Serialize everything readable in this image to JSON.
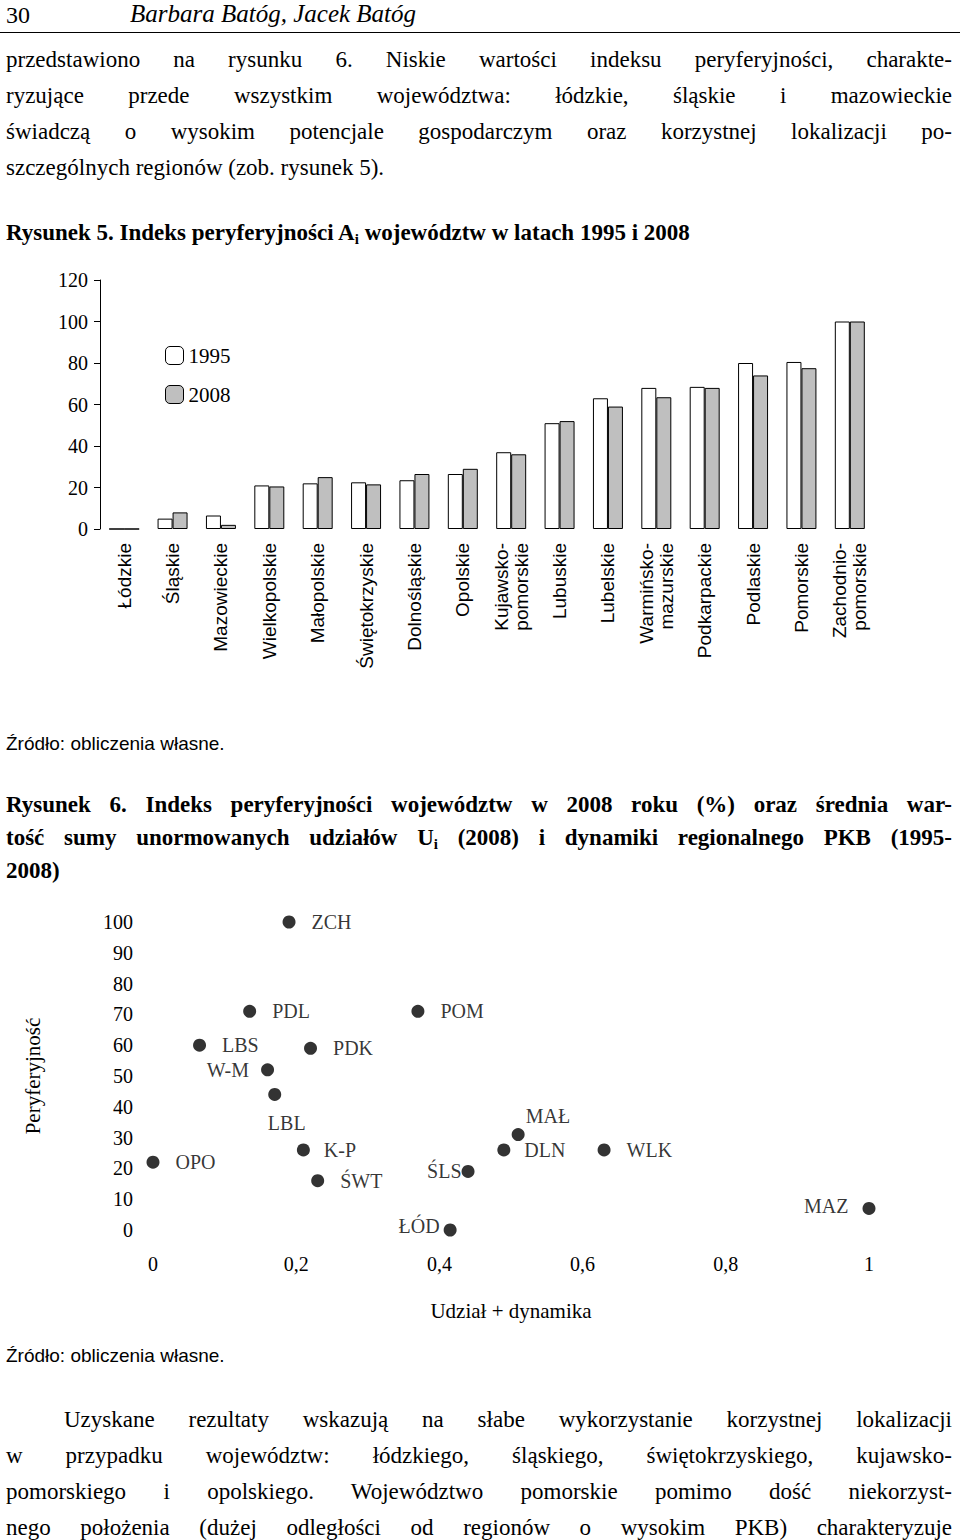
{
  "header": {
    "page": "30",
    "authors": "Barbara Batóg, Jacek Batóg"
  },
  "body_top": [
    [
      "przedstawiono na rysunku 6. Niskie wartości indeksu peryferyjności, charakte-"
    ],
    [
      "ryzujące przede wszystkim województwa: łódzkie, śląskie i mazowieckie"
    ],
    [
      "świadczą o wysokim potencjale gospodarczym oraz korzystnej lokalizacji po-"
    ],
    [
      "szczególnych regionów (zob. rysunek 5)."
    ]
  ],
  "figures": [
    {
      "caption": [
        [
          "Rysunek 5. Indeks peryferyjności A",
          {
            "sub": "i"
          },
          " województw w latach 1995 i 2008"
        ]
      ],
      "source": "Źródło: obliczenia własne."
    },
    {
      "caption": [
        [
          "Rysunek 6. Indeks peryferyjności województw w 2008 roku (%) oraz średnia war-"
        ],
        [
          "tość sumy unormowanych udziałów U",
          {
            "sub": "i"
          },
          " (2008) i dynamiki regionalnego PKB (1995-"
        ],
        [
          "2008)"
        ]
      ],
      "source": "Źródło: obliczenia własne."
    }
  ],
  "body_bottom": [
    [
      "Uzyskane rezultaty wskazują na słabe wykorzystanie korzystnej lokalizacji"
    ],
    [
      "w przypadku województw: łódzkiego, śląskiego, świętokrzyskiego, kujawsko-"
    ],
    [
      "pomorskiego i opolskiego. Województwo pomorskie pomimo dość niekorzyst-"
    ],
    [
      "nego położenia (dużej odległości od regionów o wysokim PKB) charakteryzuje"
    ]
  ],
  "chart_data": [
    {
      "type": "bar",
      "categories": [
        "Łódzkie",
        "Śląskie",
        "Mazowieckie",
        "Wielkopolskie",
        "Małopolskie",
        "Świętokrzyskie",
        "Dolnośląskie",
        "Opolskie",
        "Kujawsko-\npomorskie",
        "Lubuskie",
        "Lubelskie",
        "Warmińsko-\nmazurskie",
        "Podkarpackie",
        "Podlaskie",
        "Pomorskie",
        "Zachodnio-\npomorskie"
      ],
      "series": [
        {
          "name": "1995",
          "color": "#ffffff",
          "values": [
            0,
            5,
            6.5,
            21,
            22,
            22.5,
            23.5,
            26.5,
            37,
            51,
            63,
            68,
            68.5,
            80,
            80.5,
            100
          ]
        },
        {
          "name": "2008",
          "color": "#bfbfbf",
          "values": [
            0,
            8,
            2,
            20.5,
            25,
            21.5,
            26.5,
            29,
            36,
            52,
            59,
            63.5,
            68,
            74,
            77.5,
            100
          ]
        }
      ],
      "ylim": [
        0,
        120
      ],
      "yticks": [
        0,
        20,
        40,
        60,
        80,
        100,
        120
      ],
      "grid": false,
      "legend": "upper left"
    },
    {
      "type": "scatter",
      "x_label": "Udział + dynamika",
      "y_label": "Peryferyjność",
      "labels": [
        "ZCH",
        "PDL",
        "POM",
        "LBS",
        "PDK",
        "W-M",
        "LBL",
        "MAŁ",
        "DLN",
        "WLK",
        "K-P",
        "OPO",
        "ŚWT",
        "ŚLS",
        "ŁÓD",
        "MAZ"
      ],
      "x": [
        0.19,
        0.135,
        0.37,
        0.065,
        0.22,
        0.16,
        0.17,
        0.51,
        0.49,
        0.63,
        0.21,
        0,
        0.23,
        0.44,
        0.415,
        1
      ],
      "values": [
        100,
        71,
        71,
        60,
        59,
        52,
        44,
        31,
        26,
        26,
        26,
        22,
        16,
        19,
        0,
        7
      ],
      "color": "#000000",
      "marker": "circle",
      "xlim": [
        0,
        1
      ],
      "xticks": [
        0,
        {
          "value": 0.2,
          "label": "0,2"
        },
        {
          "value": 0.4,
          "label": "0,4"
        },
        {
          "value": 0.6,
          "label": "0,6"
        },
        {
          "value": 0.8,
          "label": "0,8"
        },
        1
      ],
      "ylim": [
        0,
        100
      ],
      "yticks": [
        0,
        10,
        20,
        30,
        40,
        50,
        60,
        70,
        80,
        90,
        100
      ],
      "grid": false
    }
  ]
}
